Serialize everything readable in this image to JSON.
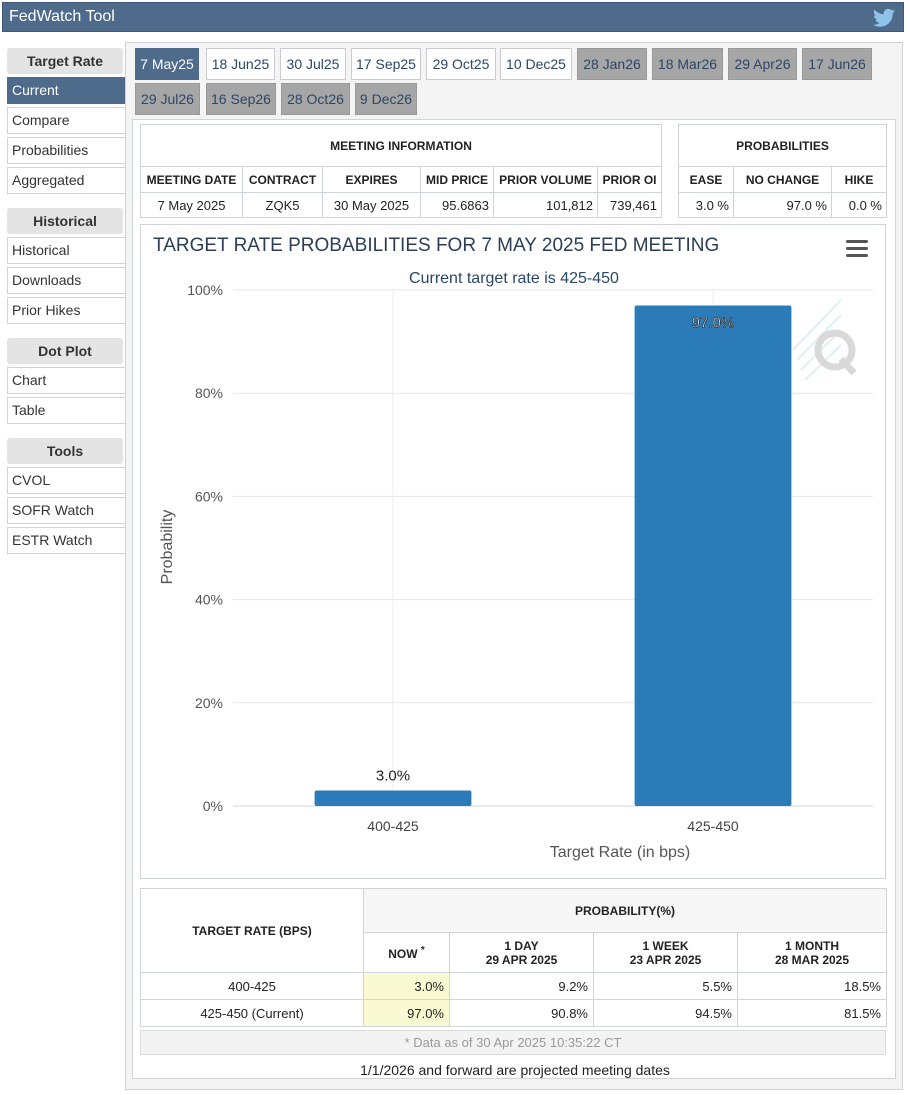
{
  "app": {
    "title": "FedWatch Tool",
    "share_icon": "twitter-icon"
  },
  "sidebar": {
    "sections": [
      {
        "heading": "Target Rate",
        "items": [
          "Current",
          "Compare",
          "Probabilities",
          "Aggregated"
        ]
      },
      {
        "heading": "Historical",
        "items": [
          "Historical",
          "Downloads",
          "Prior Hikes"
        ]
      },
      {
        "heading": "Dot Plot",
        "items": [
          "Chart",
          "Table"
        ]
      },
      {
        "heading": "Tools",
        "items": [
          "CVOL",
          "SOFR Watch",
          "ESTR Watch"
        ]
      }
    ],
    "active_item": "Current"
  },
  "tabs": [
    "7 May25",
    "18 Jun25",
    "30 Jul25",
    "17 Sep25",
    "29 Oct25",
    "10 Dec25",
    "28 Jan26",
    "18 Mar26",
    "29 Apr26",
    "17 Jun26",
    "29 Jul26",
    "16 Sep26",
    "28 Oct26",
    "9 Dec26"
  ],
  "meeting_info": {
    "heading": "MEETING INFORMATION",
    "columns": [
      "MEETING DATE",
      "CONTRACT",
      "EXPIRES",
      "MID PRICE",
      "PRIOR VOLUME",
      "PRIOR OI"
    ],
    "values": [
      "7 May 2025",
      "ZQK5",
      "30 May 2025",
      "95.6863",
      "101,812",
      "739,461"
    ]
  },
  "probabilities": {
    "heading": "PROBABILITIES",
    "columns": [
      "EASE",
      "NO CHANGE",
      "HIKE"
    ],
    "values": [
      "3.0 %",
      "97.0 %",
      "0.0 %"
    ]
  },
  "chart_data": {
    "type": "bar",
    "title": "TARGET RATE PROBABILITIES FOR 7 MAY 2025 FED MEETING",
    "subtitle": "Current target rate is 425-450",
    "categories": [
      "400-425",
      "425-450"
    ],
    "values": [
      3.0,
      97.0
    ],
    "data_labels": [
      "3.0%",
      "97.0%"
    ],
    "xlabel": "Target Rate (in bps)",
    "ylabel": "Probability",
    "ylim": [
      0,
      100
    ],
    "yticks": [
      "0%",
      "20%",
      "40%",
      "60%",
      "80%",
      "100%"
    ],
    "grid": true,
    "bar_color": "#2b7bb9",
    "menu_icon": "hamburger-menu-icon",
    "watermark_icon": "q-logo-icon"
  },
  "prob_table": {
    "header_rate": "TARGET RATE (BPS)",
    "header_prob": "PROBABILITY(%)",
    "subheaders": [
      {
        "line1": "NOW",
        "marker": "*",
        "line2": ""
      },
      {
        "line1": "1 DAY",
        "line2": "29 APR 2025"
      },
      {
        "line1": "1 WEEK",
        "line2": "23 APR 2025"
      },
      {
        "line1": "1 MONTH",
        "line2": "28 MAR 2025"
      }
    ],
    "rows": [
      {
        "rate": "400-425",
        "values": [
          "3.0%",
          "9.2%",
          "5.5%",
          "18.5%"
        ]
      },
      {
        "rate": "425-450 (Current)",
        "values": [
          "97.0%",
          "90.8%",
          "94.5%",
          "81.5%"
        ]
      }
    ],
    "as_of": "* Data as of 30 Apr 2025 10:35:22 CT"
  },
  "footnote": "1/1/2026 and forward are projected meeting dates"
}
